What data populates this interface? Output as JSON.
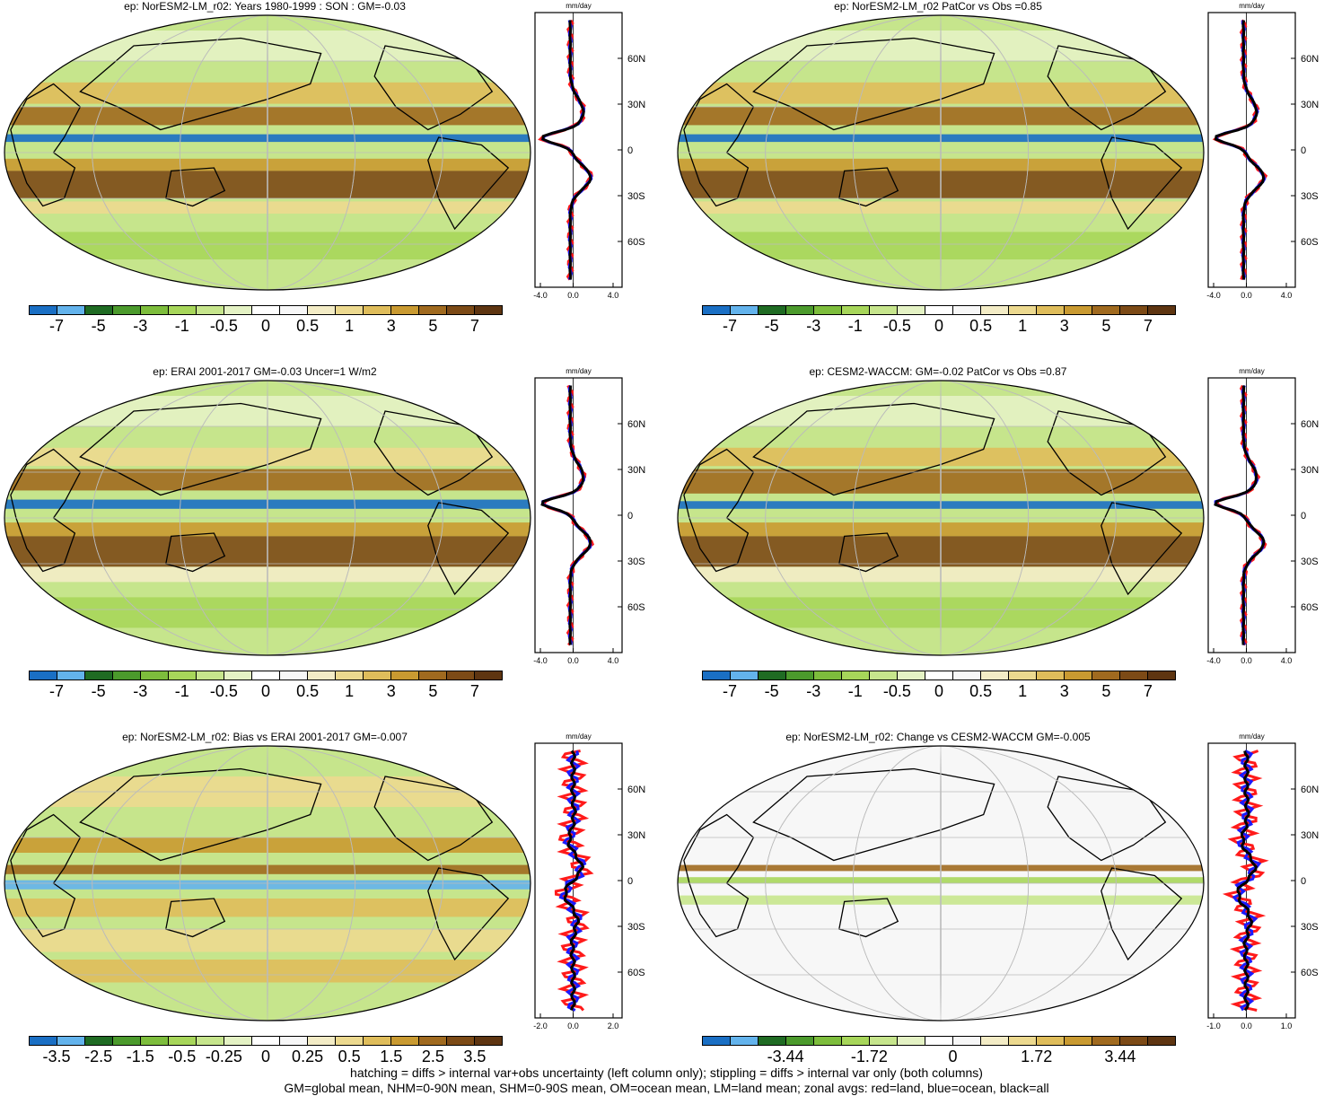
{
  "colors": {
    "scale": [
      "#1a6fc4",
      "#63b3ec",
      "#1f6b23",
      "#4b9a2c",
      "#7dbd3c",
      "#a7d65a",
      "#c6e58c",
      "#e4f2c4",
      "#ffffff",
      "#f7f7f7",
      "#f3ecc6",
      "#ecd98f",
      "#dfbd5b",
      "#c99a31",
      "#a06a1f",
      "#7c4a16",
      "#5e3511"
    ],
    "land_line": "#000000",
    "zonal_land": "#ff1a1a",
    "zonal_ocean": "#1a1aff",
    "zonal_all": "#000000"
  },
  "panels": [
    {
      "title": "ep: NorESM2-LM_r02: Years 1980-1999 : SON : GM=-0.03",
      "colorbar_labels": [
        "-7",
        "-5",
        "-3",
        "-1",
        "-0.5",
        "0",
        "0.5",
        "1",
        "3",
        "5",
        "7"
      ],
      "zonal_unit": "mm/day",
      "zonal_xticks": [
        "-4.0",
        "0.0",
        "4.0"
      ],
      "lat_labels": [
        "60N",
        "30N",
        "0",
        "30S",
        "60S"
      ]
    },
    {
      "title": "ep: NorESM2-LM_r02 PatCor vs Obs =0.85",
      "colorbar_labels": [
        "-7",
        "-5",
        "-3",
        "-1",
        "-0.5",
        "0",
        "0.5",
        "1",
        "3",
        "5",
        "7"
      ],
      "zonal_unit": "mm/day",
      "zonal_xticks": [
        "-4.0",
        "0.0",
        "4.0"
      ],
      "lat_labels": [
        "60N",
        "30N",
        "0",
        "30S",
        "60S"
      ]
    },
    {
      "title": "ep: ERAI 2001-2017 GM=-0.03 Uncer=1 W/m2",
      "colorbar_labels": [
        "-7",
        "-5",
        "-3",
        "-1",
        "-0.5",
        "0",
        "0.5",
        "1",
        "3",
        "5",
        "7"
      ],
      "zonal_unit": "mm/day",
      "zonal_xticks": [
        "-4.0",
        "0.0",
        "4.0"
      ],
      "lat_labels": [
        "60N",
        "30N",
        "0",
        "30S",
        "60S"
      ]
    },
    {
      "title": "ep: CESM2-WACCM: GM=-0.02 PatCor vs Obs =0.87",
      "colorbar_labels": [
        "-7",
        "-5",
        "-3",
        "-1",
        "-0.5",
        "0",
        "0.5",
        "1",
        "3",
        "5",
        "7"
      ],
      "zonal_unit": "mm/day",
      "zonal_xticks": [
        "-4.0",
        "0.0",
        "4.0"
      ],
      "lat_labels": [
        "60N",
        "30N",
        "0",
        "30S",
        "60S"
      ]
    },
    {
      "title": "ep: NorESM2-LM_r02: Bias vs ERAI 2001-2017  GM=-0.007",
      "colorbar_labels": [
        "-3.5",
        "-2.5",
        "-1.5",
        "-0.5",
        "-0.25",
        "0",
        "0.25",
        "0.5",
        "1.5",
        "2.5",
        "3.5"
      ],
      "zonal_unit": "mm/day",
      "zonal_xticks": [
        "-2.0",
        "0.0",
        "2.0"
      ],
      "lat_labels": [
        "60N",
        "30N",
        "0",
        "30S",
        "60S"
      ]
    },
    {
      "title": "ep: NorESM2-LM_r02: Change vs CESM2-WACCM GM=-0.005",
      "colorbar_labels": [
        "-3.44",
        "-1.72",
        "0",
        "1.72",
        "3.44"
      ],
      "zonal_unit": "mm/day",
      "zonal_xticks": [
        "-1.0",
        "0.0",
        "1.0"
      ],
      "lat_labels": [
        "60N",
        "30N",
        "0",
        "30S",
        "60S"
      ]
    }
  ],
  "footer": {
    "line1": "hatching = diffs > internal var+obs uncertainty (left column only); stippling = diffs > internal var only (both columns)",
    "line2": "GM=global mean, NHM=0-90N mean, SHM=0-90S mean, OM=ocean mean, LM=land mean; zonal avgs: red=land, blue=ocean, black=all"
  }
}
